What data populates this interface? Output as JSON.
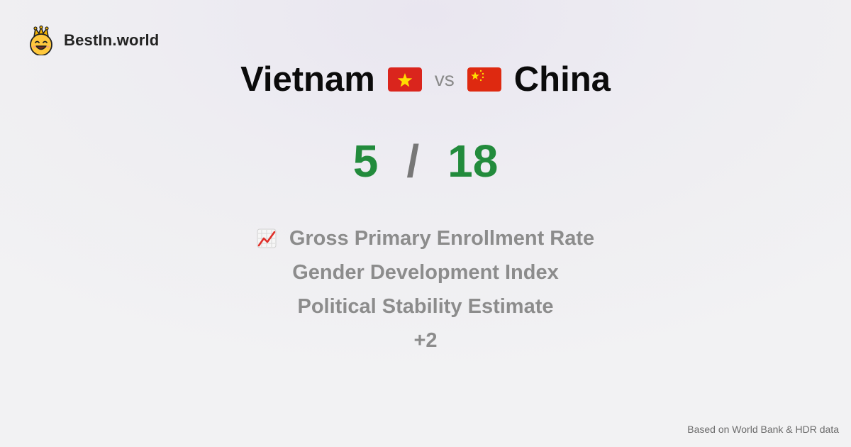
{
  "brand": {
    "name": "BestIn.world",
    "logo_icon": "crowned-smiley-icon"
  },
  "comparison": {
    "left_country": "Vietnam",
    "vs": "vs",
    "right_country": "China",
    "left_flag_colors": {
      "field": "#da251d",
      "star": "#ffdd00"
    },
    "right_flag_colors": {
      "field": "#de2910",
      "star": "#ffde00"
    }
  },
  "score": {
    "left": "5",
    "separator": "/",
    "right": "18",
    "color": "#228b3c"
  },
  "metrics": [
    {
      "label": "Gross Primary Enrollment Rate",
      "icon": "chart-increasing-icon"
    },
    {
      "label": "Gender Development Index"
    },
    {
      "label": "Political Stability Estimate"
    },
    {
      "label": "+2"
    }
  ],
  "footer": {
    "source_note": "Based on World Bank & HDR data"
  }
}
